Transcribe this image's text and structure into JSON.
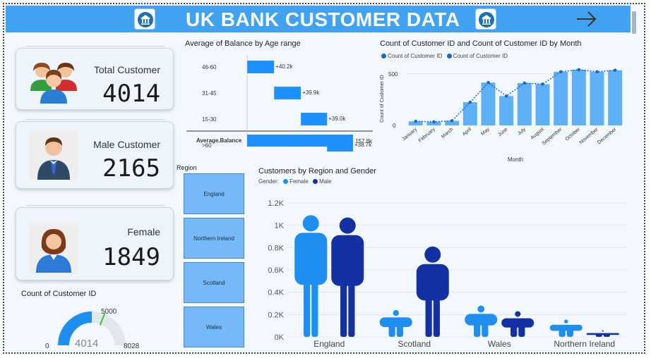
{
  "header": {
    "title": "UK  BANK CUSTOMER DATA"
  },
  "colors": {
    "header": "#41a1f3",
    "female": "#1e8ff0",
    "male": "#1431a3",
    "bar": "#1e90ff",
    "monthBar": "#5fb0f7",
    "line": "#1769c7",
    "gauge": "#1e8ff0",
    "region": "#76b9f9"
  },
  "kpis": [
    {
      "label": "Total Customer",
      "value": "4014",
      "icon": "group-icon"
    },
    {
      "label": "Male Customer",
      "value": "2165",
      "icon": "male-icon"
    },
    {
      "label": "Female",
      "value": "1849",
      "icon": "female-icon"
    }
  ],
  "gauge": {
    "title": "Count of Customer ID",
    "value": 4014,
    "value_label": "4014",
    "min_label": "0",
    "max_label": "8028",
    "target_label": "5000",
    "min": 0,
    "max": 8028,
    "target": 5000
  },
  "region_slicer": {
    "title": "Region",
    "items": [
      "England",
      "Northern Ireland",
      "Scotland",
      "Wales"
    ]
  },
  "chart_data": [
    {
      "id": "balance",
      "type": "bar",
      "title": "Average of Balance by Age range",
      "categories": [
        "46-60",
        "31-45",
        "15-30",
        ">60"
      ],
      "values": [
        40.2,
        39.9,
        39.0,
        38.7
      ],
      "value_labels": [
        "+40.2k",
        "+39.9k",
        "+39.0k",
        "+38.7k"
      ],
      "total_label": "Average.Balance",
      "total_value": 157.8,
      "total_value_label": "157.8k"
    },
    {
      "id": "month",
      "type": "bar",
      "title": "Count of Customer ID and Count of Customer ID by Month",
      "legend": [
        "Count of Customer ID",
        "Count of Customer ID"
      ],
      "xlabel": "Month",
      "ylabel": "Count of Customer ID",
      "y_ticks": [
        "0",
        "500"
      ],
      "ylim": [
        0,
        560
      ],
      "categories": [
        "January",
        "February",
        "March",
        "April",
        "May",
        "June",
        "July",
        "August",
        "September",
        "October",
        "November",
        "December"
      ],
      "bar_values": [
        40,
        35,
        45,
        225,
        415,
        285,
        410,
        400,
        520,
        540,
        520,
        535
      ],
      "line_values": [
        40,
        35,
        45,
        225,
        415,
        285,
        410,
        400,
        520,
        540,
        520,
        535
      ]
    },
    {
      "id": "region",
      "type": "bar",
      "title": "Customers by Region and Gender",
      "legend_title": "Gender:",
      "legend": [
        "Female",
        "Male"
      ],
      "y_ticks": [
        "0K",
        "0.2K",
        "0.4K",
        "0.6K",
        "0.8K",
        "1K",
        "1.2K"
      ],
      "y_tick_values": [
        0,
        200,
        400,
        600,
        800,
        1000,
        1200
      ],
      "ylim": [
        0,
        1200
      ],
      "categories": [
        "England",
        "Scotland",
        "Wales",
        "Northern Ireland"
      ],
      "series": [
        {
          "name": "Female",
          "values": [
            1090,
            240,
            280,
            155
          ]
        },
        {
          "name": "Male",
          "values": [
            1070,
            810,
            230,
            60
          ]
        }
      ]
    }
  ]
}
